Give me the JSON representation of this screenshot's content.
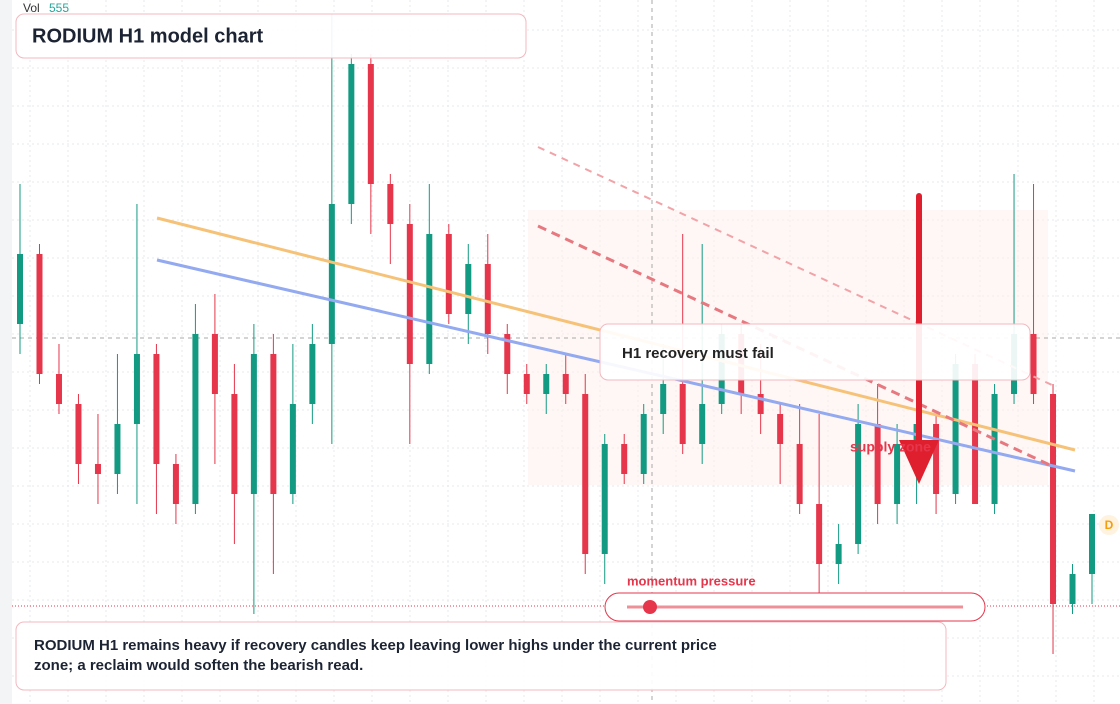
{
  "chart_data": {
    "type": "candlestick",
    "title": "RODIUM H1 model chart",
    "volume_label": "Vol",
    "volume_value": "555",
    "annotation": "H1 recovery must fail",
    "zone_label": "supply zone",
    "indicator_label": "momentum pressure",
    "caption": "RODIUM H1 remains heavy if recovery candles keep leaving lower highs under the current price zone; a reclaim would soften the bearish read.",
    "badge": "D",
    "ylim": [
      0,
      70.4
    ],
    "grid": true,
    "colors": {
      "up": "#139a82",
      "down": "#e5364b"
    },
    "open": [
      38,
      45,
      33,
      30,
      24,
      23,
      28,
      35,
      24,
      20,
      37,
      31,
      21,
      35,
      21,
      30,
      36,
      50,
      64,
      52,
      48,
      34,
      47,
      39,
      44,
      37,
      33,
      31,
      33,
      31,
      15,
      26,
      23,
      29,
      32,
      26,
      30,
      37,
      31,
      29,
      26,
      20,
      14,
      16,
      28,
      20,
      26,
      28,
      21,
      34,
      20,
      31,
      37,
      31,
      10,
      13
    ],
    "high": [
      52,
      46,
      36,
      31,
      29,
      35,
      50,
      36,
      25,
      40,
      41,
      34,
      38,
      37,
      36,
      38,
      69,
      65,
      65,
      53,
      50,
      52,
      48,
      46,
      47,
      38,
      34,
      34,
      35,
      33,
      27,
      27,
      30,
      36,
      47,
      46,
      38,
      38,
      36,
      30,
      30,
      29,
      18,
      30,
      32,
      28,
      29,
      29,
      35,
      35,
      32,
      53,
      52,
      32,
      14,
      19
    ],
    "low": [
      35,
      32,
      29,
      22,
      20,
      21,
      20,
      19,
      18,
      19,
      24,
      16,
      9,
      13,
      20,
      28,
      26,
      48,
      47,
      44,
      26,
      33,
      38,
      36,
      35,
      31,
      30,
      29,
      30,
      13,
      12,
      22,
      22,
      27,
      25,
      24,
      29,
      29,
      27,
      22,
      19,
      11,
      12,
      15,
      18,
      18,
      20,
      19,
      20,
      20,
      19,
      30,
      30,
      5,
      9,
      10
    ],
    "close": [
      45,
      33,
      30,
      24,
      23,
      28,
      35,
      24,
      20,
      37,
      31,
      21,
      35,
      21,
      30,
      36,
      50,
      64,
      52,
      48,
      34,
      47,
      39,
      44,
      37,
      33,
      31,
      33,
      31,
      15,
      26,
      23,
      29,
      32,
      26,
      30,
      37,
      31,
      29,
      26,
      20,
      14,
      16,
      28,
      20,
      26,
      28,
      21,
      34,
      20,
      31,
      37,
      31,
      10,
      13,
      19
    ]
  }
}
